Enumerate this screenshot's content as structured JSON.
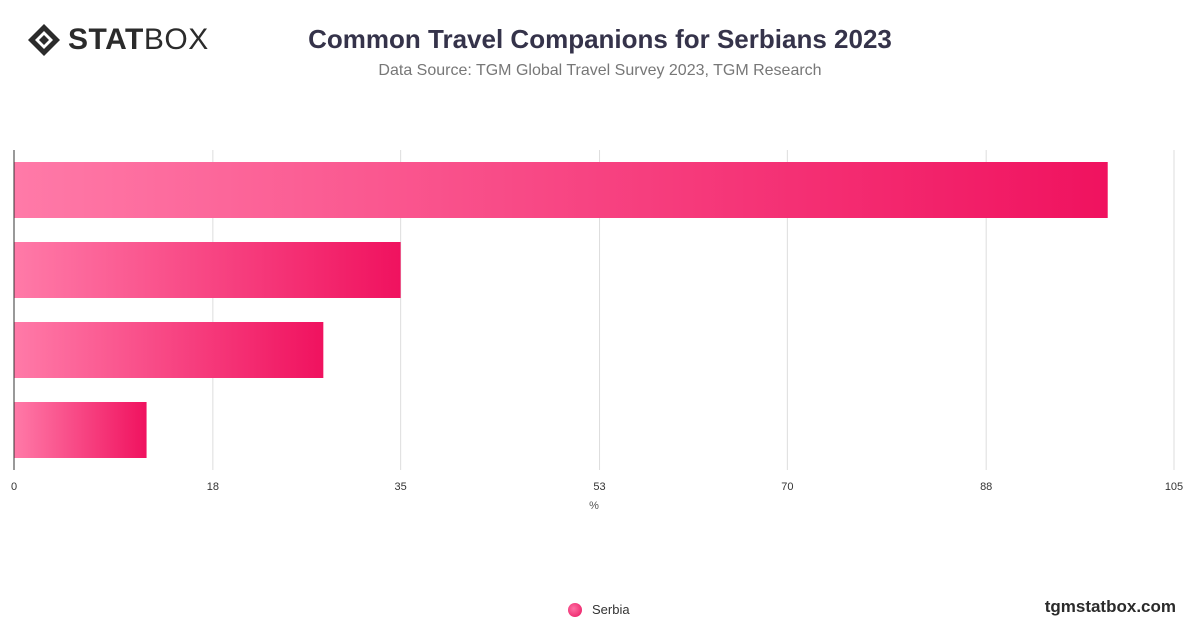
{
  "brand": {
    "logo_bold": "STAT",
    "logo_light": "BOX",
    "footer": "tgmstatbox.com"
  },
  "header": {
    "title": "Common Travel Companions for Serbians 2023",
    "subtitle": "Data Source: TGM Global Travel Survey 2023, TGM Research"
  },
  "colors": {
    "bar_start": "#ff7aa8",
    "bar_end": "#f0125f",
    "grid": "#dddddd",
    "axis": "#333333"
  },
  "chart_data": {
    "type": "bar",
    "orientation": "horizontal",
    "categories": [
      "",
      "",
      "",
      ""
    ],
    "series": [
      {
        "name": "Serbia",
        "values": [
          99,
          35,
          28,
          12
        ]
      }
    ],
    "xlim": [
      0,
      105
    ],
    "xticks": [
      0,
      18,
      35,
      53,
      70,
      88,
      105
    ],
    "xlabel": "%",
    "grid": true,
    "legend": "bottom-center"
  }
}
